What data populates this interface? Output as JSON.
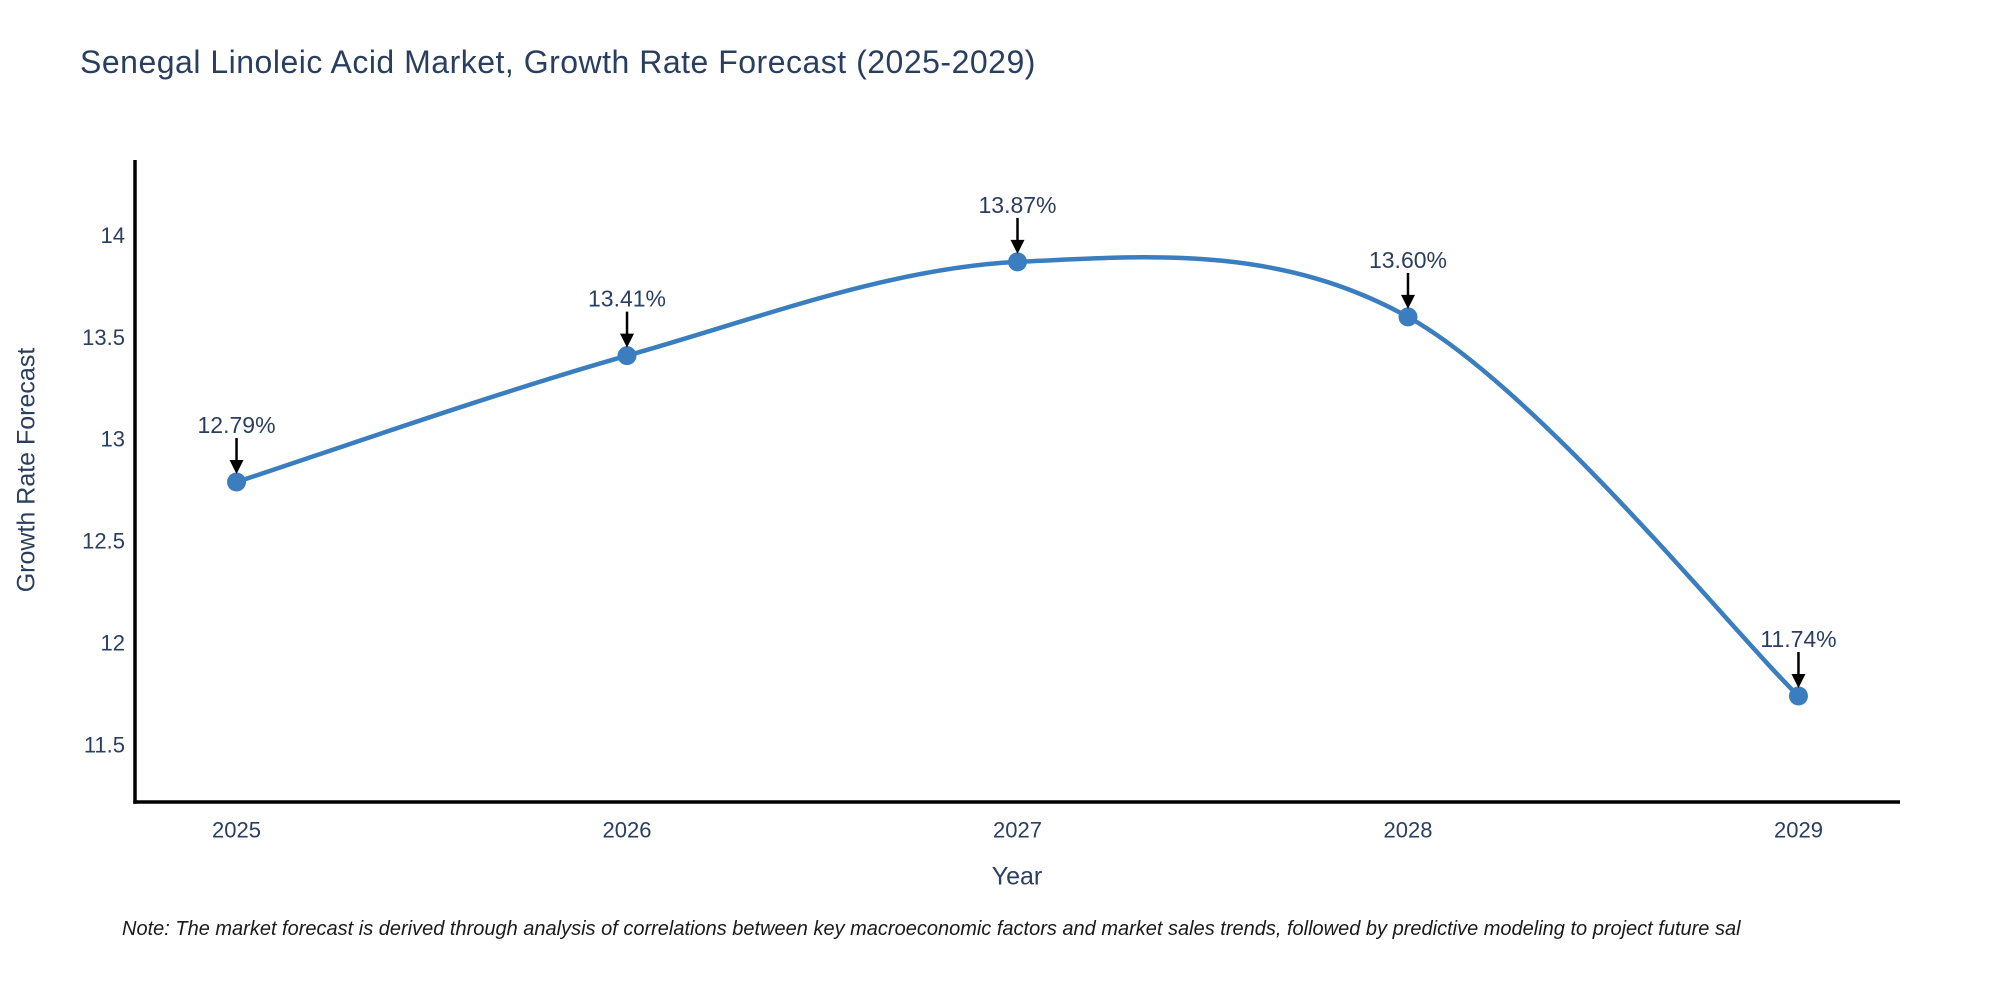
{
  "note": "Note: The market forecast is derived through analysis of correlations between key macroeconomic factors and market sales trends, followed by predictive modeling to project future sal",
  "chart_data": {
    "type": "line",
    "title": "Senegal Linoleic Acid Market, Growth Rate Forecast (2025-2029)",
    "xlabel": "Year",
    "ylabel": "Growth Rate Forecast",
    "x": [
      2025,
      2026,
      2027,
      2028,
      2029
    ],
    "x_tick_labels": [
      "2025",
      "2026",
      "2027",
      "2028",
      "2029"
    ],
    "series": [
      {
        "name": "Growth Rate Forecast",
        "values": [
          12.79,
          13.41,
          13.87,
          13.6,
          11.74
        ],
        "point_labels": [
          "12.79%",
          "13.41%",
          "13.87%",
          "13.60%",
          "11.74%"
        ]
      }
    ],
    "y_ticks": [
      11.5,
      12,
      12.5,
      13,
      13.5,
      14
    ],
    "y_tick_labels": [
      "11.5",
      "12",
      "12.5",
      "13",
      "13.5",
      "14"
    ],
    "xlim": [
      2024.74,
      2029.26
    ],
    "ylim": [
      11.22,
      14.37
    ],
    "line_shape": "spline",
    "grid": false,
    "legend_position": "none",
    "colors": {
      "line": "#3a7ebf",
      "marker": "#3a7ebf",
      "annotation_arrow": "#000000",
      "axis_line": "#000000",
      "text": "#2a3f5f",
      "note_text": "#1a1a1a",
      "background": "#ffffff"
    }
  }
}
